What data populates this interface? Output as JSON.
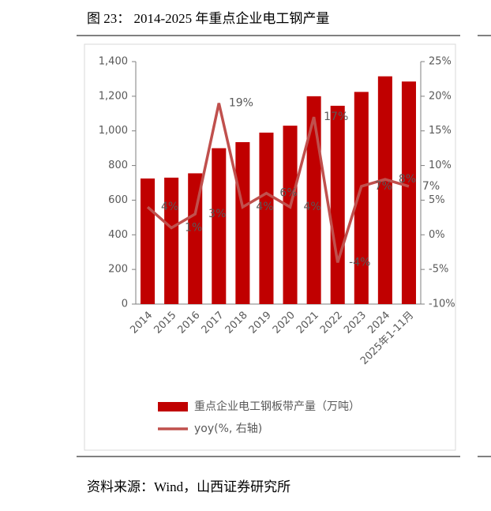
{
  "header": {
    "title": "图 23：  2014-2025 年重点企业电工钢产量"
  },
  "chart_data": {
    "type": "bar_line",
    "categories": [
      "2014",
      "2015",
      "2016",
      "2017",
      "2018",
      "2019",
      "2020",
      "2021",
      "2022",
      "2023",
      "2024",
      "2025年1-11月"
    ],
    "series": [
      {
        "name": "重点企业电工钢板带产量（万吨）",
        "type": "bar",
        "color": "#c00000",
        "values": [
          725,
          730,
          755,
          900,
          935,
          990,
          1030,
          1200,
          1145,
          1225,
          1315,
          1285
        ]
      },
      {
        "name": "yoy(%, 右轴)",
        "type": "line",
        "axis": "y2",
        "color": "#c0504d",
        "values": [
          4,
          1,
          3,
          19,
          4,
          6,
          4,
          17,
          -4,
          7,
          8,
          7
        ],
        "value_labels": [
          "4%",
          "1%",
          "3%",
          "19%",
          "4%",
          "6%",
          "4%",
          "17%",
          "-4%",
          "7%",
          "8%",
          "7%"
        ]
      }
    ],
    "ylim": [
      0,
      1400
    ],
    "yticks": [
      0,
      200,
      400,
      600,
      800,
      {
        "value": 1000,
        "label": "1,000"
      },
      {
        "value": 1200,
        "label": "1,200"
      },
      {
        "value": 1400,
        "label": "1,400"
      }
    ],
    "y2lim": [
      -10,
      25
    ],
    "y2ticks": [
      {
        "value": -10,
        "label": "-10%"
      },
      {
        "value": -5,
        "label": "-5%"
      },
      {
        "value": 0,
        "label": "0%"
      },
      {
        "value": 5,
        "label": "5%"
      },
      {
        "value": 10,
        "label": "10%"
      },
      {
        "value": 15,
        "label": "15%"
      },
      {
        "value": 20,
        "label": "20%"
      },
      {
        "value": 25,
        "label": "25%"
      }
    ]
  },
  "footer": {
    "source": "资料来源：Wind，山西证券研究所"
  }
}
